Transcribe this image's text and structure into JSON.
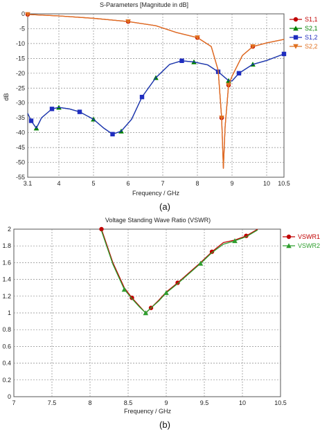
{
  "panel_labels": [
    "(a)",
    "(b)"
  ],
  "chart_data": [
    {
      "type": "line",
      "title": "S-Parameters [Magnitude in dB]",
      "xlabel": "Frequency / GHz",
      "ylabel": "dB",
      "xlim": [
        3.1,
        10.5
      ],
      "ylim": [
        -55,
        0
      ],
      "x_ticks": [
        "3.1",
        "4",
        "5",
        "6",
        "7",
        "8",
        "9",
        "10",
        "10.5"
      ],
      "y_ticks": [
        "0",
        "-5",
        "-10",
        "-15",
        "-20",
        "-25",
        "-30",
        "-35",
        "-40",
        "-45",
        "-50",
        "-55"
      ],
      "grid": true,
      "legend_position": "right",
      "series": [
        {
          "name": "S1,1",
          "color": "#c00000",
          "marker": "circle",
          "x": [
            3.1,
            4.0,
            5.0,
            6.0,
            6.8,
            7.4,
            8.0,
            8.4,
            8.6,
            8.7,
            8.75,
            8.8,
            8.9,
            9.0,
            9.3,
            9.6,
            10.0,
            10.5
          ],
          "y": [
            -0.2,
            -0.7,
            -1.5,
            -2.6,
            -4.0,
            -6.3,
            -8.0,
            -11.0,
            -19.0,
            -35.0,
            -52.0,
            -38.0,
            -24.0,
            -21.0,
            -14.0,
            -11.0,
            -9.8,
            -8.6
          ]
        },
        {
          "name": "S2,1",
          "color": "#008000",
          "marker": "triangle-up",
          "x": [
            3.1,
            3.2,
            3.35,
            3.5,
            3.8,
            4.0,
            4.3,
            4.6,
            5.0,
            5.3,
            5.55,
            5.8,
            6.1,
            6.4,
            6.8,
            7.2,
            7.55,
            7.9,
            8.3,
            8.6,
            8.9,
            9.0,
            9.2,
            9.6,
            10.0,
            10.5
          ],
          "y": [
            -33.5,
            -36.0,
            -38.5,
            -35.0,
            -32.0,
            -31.5,
            -32.0,
            -33.0,
            -35.5,
            -38.5,
            -40.5,
            -39.5,
            -35.5,
            -28.0,
            -21.5,
            -17.0,
            -15.8,
            -16.2,
            -17.2,
            -19.5,
            -22.5,
            -22.6,
            -20.0,
            -17.0,
            -15.7,
            -13.5
          ]
        },
        {
          "name": "S1,2",
          "color": "#1f2dbf",
          "marker": "square",
          "x": [
            3.1,
            3.2,
            3.35,
            3.5,
            3.8,
            4.0,
            4.3,
            4.6,
            5.0,
            5.3,
            5.55,
            5.8,
            6.1,
            6.4,
            6.8,
            7.2,
            7.55,
            7.9,
            8.3,
            8.6,
            8.9,
            9.0,
            9.2,
            9.6,
            10.0,
            10.5
          ],
          "y": [
            -33.5,
            -36.0,
            -38.5,
            -35.0,
            -32.0,
            -31.5,
            -32.0,
            -33.0,
            -35.5,
            -38.5,
            -40.5,
            -39.5,
            -35.5,
            -28.0,
            -21.5,
            -17.0,
            -15.8,
            -16.2,
            -17.2,
            -19.5,
            -22.5,
            -22.6,
            -20.0,
            -17.0,
            -15.7,
            -13.5
          ]
        },
        {
          "name": "S2,2",
          "color": "#e07020",
          "marker": "triangle-down",
          "x": [
            3.1,
            4.0,
            5.0,
            6.0,
            6.8,
            7.4,
            8.0,
            8.4,
            8.6,
            8.7,
            8.75,
            8.8,
            8.9,
            9.0,
            9.3,
            9.6,
            10.0,
            10.5
          ],
          "y": [
            -0.2,
            -0.7,
            -1.5,
            -2.6,
            -4.0,
            -6.3,
            -8.0,
            -11.0,
            -19.0,
            -35.0,
            -52.0,
            -38.0,
            -24.0,
            -21.0,
            -14.0,
            -11.0,
            -9.8,
            -8.6
          ]
        }
      ]
    },
    {
      "type": "line",
      "title": "Voltage Standing Wave Ratio (VSWR)",
      "xlabel": "Frequency / GHz",
      "ylabel": "",
      "xlim": [
        7,
        10.5
      ],
      "ylim": [
        0,
        2
      ],
      "x_ticks": [
        "7",
        "7.5",
        "8",
        "8.5",
        "9",
        "9.5",
        "10",
        "10.5"
      ],
      "y_ticks": [
        "2",
        "1.8",
        "1.6",
        "1.4",
        "1.2",
        "1",
        "0.8",
        "0.6",
        "0.4",
        "0.2",
        "0"
      ],
      "grid": true,
      "legend_position": "top-right",
      "series": [
        {
          "name": "VSWR1",
          "color": "#c00000",
          "marker": "circle",
          "x": [
            8.15,
            8.3,
            8.45,
            8.55,
            8.65,
            8.73,
            8.8,
            8.9,
            9.0,
            9.15,
            9.3,
            9.45,
            9.6,
            9.75,
            9.9,
            10.05,
            10.2
          ],
          "y": [
            2.0,
            1.6,
            1.3,
            1.18,
            1.08,
            1.0,
            1.06,
            1.15,
            1.25,
            1.36,
            1.48,
            1.6,
            1.73,
            1.84,
            1.87,
            1.92,
            2.0
          ]
        },
        {
          "name": "VSWR2",
          "color": "#2e9e2e",
          "marker": "triangle-up",
          "x": [
            8.15,
            8.3,
            8.45,
            8.55,
            8.65,
            8.73,
            8.8,
            8.9,
            9.0,
            9.15,
            9.3,
            9.45,
            9.6,
            9.75,
            9.9,
            10.05,
            10.2
          ],
          "y": [
            1.98,
            1.58,
            1.28,
            1.17,
            1.07,
            1.0,
            1.06,
            1.14,
            1.24,
            1.35,
            1.47,
            1.59,
            1.72,
            1.82,
            1.86,
            1.91,
            1.99
          ]
        }
      ]
    }
  ]
}
